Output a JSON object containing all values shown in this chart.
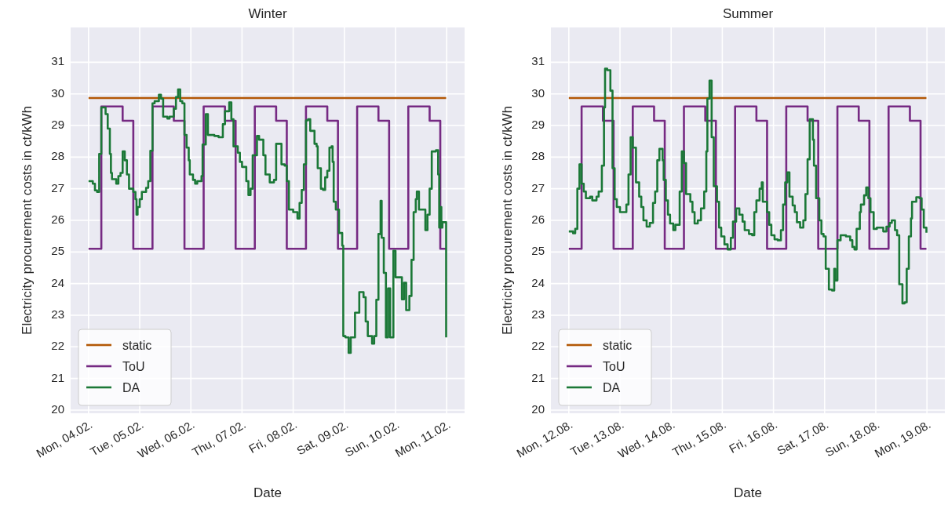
{
  "chart_data": [
    {
      "type": "step",
      "title": "Winter",
      "xlabel": "Date",
      "ylabel": "Electricity procurement costs in ct/kWh",
      "xlim": [
        "--02-03T15:36",
        "--02-11T08:24"
      ],
      "ylim": [
        19.9,
        32.1
      ],
      "xticks": [
        {
          "value": "--02-04",
          "label": "Mon, 04.02."
        },
        {
          "value": "--02-05",
          "label": "Tue, 05.02."
        },
        {
          "value": "--02-06",
          "label": "Wed, 06.02."
        },
        {
          "value": "--02-07",
          "label": "Thu, 07.02."
        },
        {
          "value": "--02-08",
          "label": "Fri, 08.02."
        },
        {
          "value": "--02-09",
          "label": "Sat, 09.02."
        },
        {
          "value": "--02-10",
          "label": "Sun, 10.02."
        },
        {
          "value": "--02-11",
          "label": "Mon, 11.02."
        }
      ],
      "yticks": [
        20,
        21,
        22,
        23,
        24,
        25,
        26,
        27,
        28,
        29,
        30,
        31
      ],
      "grid": true,
      "legend": "bottom left",
      "series": [
        {
          "name": "static",
          "color": "#b35806",
          "x": [
            "--02-04T00:00",
            "--02-10T23:45"
          ],
          "values": [
            29.87,
            29.87
          ]
        },
        {
          "name": "ToU",
          "color": "#762a83",
          "x": [
            "--02-04T00:00",
            "--02-04T06:00",
            "--02-04T16:00",
            "--02-04T21:00",
            "--02-05T06:00",
            "--02-05T16:00",
            "--02-05T21:00",
            "--02-06T06:00",
            "--02-06T16:00",
            "--02-06T21:00",
            "--02-07T06:00",
            "--02-07T16:00",
            "--02-07T21:00",
            "--02-08T06:00",
            "--02-08T16:00",
            "--02-08T21:00",
            "--02-09T06:00",
            "--02-09T16:00",
            "--02-09T21:00",
            "--02-10T06:00",
            "--02-10T16:00",
            "--02-10T21:00",
            "--02-10T23:45"
          ],
          "values": [
            25.1,
            29.6,
            29.15,
            25.1,
            29.6,
            29.15,
            25.1,
            29.6,
            29.15,
            25.1,
            29.6,
            29.15,
            25.1,
            29.6,
            29.15,
            25.1,
            29.6,
            29.15,
            25.1,
            29.6,
            29.15,
            25.1,
            25.1
          ]
        },
        {
          "name": "DA",
          "color": "#1b7837",
          "x": [
            "--02-04T00:00",
            "--02-04T02:00",
            "--02-04T03:00",
            "--02-04T04:00",
            "--02-04T05:00",
            "--02-04T06:00",
            "--02-04T08:00",
            "--02-04T09:00",
            "--02-04T10:00",
            "--02-04T10:30",
            "--02-04T11:00",
            "--02-04T13:00",
            "--02-04T14:00",
            "--02-04T15:00",
            "--02-04T16:00",
            "--02-04T17:00",
            "--02-04T18:00",
            "--02-04T19:00",
            "--02-04T21:00",
            "--02-04T22:00",
            "--02-04T22:30",
            "--02-04T23:00",
            "--02-05T00:00",
            "--02-05T01:00",
            "--02-05T03:00",
            "--02-05T04:00",
            "--02-05T05:00",
            "--02-05T06:00",
            "--02-05T07:00",
            "--02-05T09:00",
            "--02-05T10:00",
            "--02-05T11:00",
            "--02-05T13:00",
            "--02-05T14:00",
            "--02-05T16:00",
            "--02-05T17:00",
            "--02-05T18:00",
            "--02-05T19:00",
            "--02-05T20:00",
            "--02-05T21:00",
            "--02-05T22:00",
            "--02-05T23:00",
            "--02-05T23:30",
            "--02-06T01:00",
            "--02-06T02:00",
            "--02-06T03:00",
            "--02-06T05:00",
            "--02-06T05:30",
            "--02-06T07:00",
            "--02-06T08:00",
            "--02-06T11:00",
            "--02-06T13:00",
            "--02-06T15:00",
            "--02-06T16:00",
            "--02-06T18:00",
            "--02-06T19:00",
            "--02-06T20:00",
            "--02-06T22:00",
            "--02-06T23:00",
            "--02-07T00:00",
            "--02-07T02:00",
            "--02-07T03:00",
            "--02-07T04:00",
            "--02-07T05:00",
            "--02-07T07:00",
            "--02-07T08:00",
            "--02-07T10:00",
            "--02-07T11:00",
            "--02-07T13:00",
            "--02-07T15:00",
            "--02-07T16:00",
            "--02-07T18:30",
            "--02-07T20:00",
            "--02-07T21:00",
            "--02-07T22:00",
            "--02-08T00:00",
            "--02-08T02:00",
            "--02-08T03:00",
            "--02-08T04:00",
            "--02-08T05:00",
            "--02-08T06:00",
            "--02-08T07:00",
            "--02-08T08:00",
            "--02-08T10:00",
            "--02-08T11:00",
            "--02-08T11:30",
            "--02-08T13:00",
            "--02-08T14:00",
            "--02-08T15:00",
            "--02-08T16:00",
            "--02-08T17:00",
            "--02-08T18:00",
            "--02-08T18:30",
            "--02-08T19:00",
            "--02-08T20:00",
            "--02-08T21:30",
            "--02-08T23:00",
            "--02-08T23:30",
            "--02-09T00:30",
            "--02-09T02:00",
            "--02-09T03:00",
            "--02-09T05:00",
            "--02-09T07:00",
            "--02-09T09:00",
            "--02-09T10:00",
            "--02-09T11:00",
            "--02-09T13:00",
            "--02-09T14:00",
            "--02-09T15:00",
            "--02-09T16:00",
            "--02-09T17:00",
            "--02-09T17:30",
            "--02-09T18:30",
            "--02-09T19:30",
            "--02-09T20:30",
            "--02-09T21:30",
            "--02-09T23:00",
            "--02-10T00:00",
            "--02-10T02:00",
            "--02-10T03:00",
            "--02-10T04:00",
            "--02-10T05:00",
            "--02-10T06:30",
            "--02-10T07:30",
            "--02-10T08:30",
            "--02-10T09:30",
            "--02-10T10:00",
            "--02-10T11:00",
            "--02-10T14:00",
            "--02-10T15:00",
            "--02-10T16:00",
            "--02-10T17:00",
            "--02-10T19:00",
            "--02-10T20:00",
            "--02-10T20:30",
            "--02-10T21:00",
            "--02-10T21:30",
            "--02-10T22:00",
            "--02-10T23:45"
          ],
          "values": [
            27.24,
            27.16,
            26.95,
            26.9,
            28.1,
            29.57,
            29.36,
            28.9,
            28.1,
            27.5,
            27.3,
            27.16,
            27.4,
            27.5,
            28.18,
            27.9,
            27.45,
            27.0,
            26.9,
            26.67,
            26.18,
            26.42,
            26.67,
            26.9,
            27.03,
            27.24,
            28.2,
            29.7,
            29.77,
            29.97,
            29.85,
            29.28,
            29.22,
            29.28,
            29.53,
            29.9,
            30.14,
            29.77,
            29.7,
            28.7,
            28.3,
            27.9,
            27.45,
            27.28,
            27.16,
            27.24,
            27.4,
            28.4,
            29.36,
            28.7,
            28.67,
            28.63,
            29.04,
            29.45,
            29.73,
            29.2,
            28.34,
            28.14,
            27.85,
            27.69,
            27.24,
            26.8,
            27.0,
            28.06,
            28.67,
            28.55,
            28.06,
            27.45,
            27.2,
            27.28,
            28.42,
            27.77,
            27.73,
            27.24,
            26.34,
            26.26,
            26.06,
            26.55,
            26.96,
            27.77,
            29.16,
            29.2,
            28.83,
            28.42,
            28.34,
            27.65,
            27.0,
            26.96,
            27.36,
            27.57,
            28.3,
            28.34,
            27.85,
            26.59,
            26.34,
            25.6,
            25.2,
            22.34,
            22.3,
            21.81,
            22.3,
            23.08,
            23.73,
            23.57,
            22.8,
            22.34,
            22.1,
            22.34,
            23.49,
            25.57,
            26.62,
            25.45,
            24.34,
            22.3,
            23.85,
            22.3,
            25.04,
            24.2,
            24.2,
            23.5,
            24.03,
            23.16,
            23.61,
            24.75,
            26.26,
            26.67,
            26.91,
            26.34,
            25.69,
            26.18,
            27.0,
            28.18,
            28.22,
            27.45,
            25.77,
            26.42,
            25.77,
            25.94,
            22.3
          ]
        }
      ]
    },
    {
      "type": "step",
      "title": "Summer",
      "xlabel": "Date",
      "ylabel": "Electricity procurement costs in ct/kWh",
      "xlim": [
        "--08-11T15:36",
        "--08-19T08:24"
      ],
      "ylim": [
        19.9,
        32.1
      ],
      "xticks": [
        {
          "value": "--08-12",
          "label": "Mon, 12.08."
        },
        {
          "value": "--08-13",
          "label": "Tue, 13.08."
        },
        {
          "value": "--08-14",
          "label": "Wed, 14.08."
        },
        {
          "value": "--08-15",
          "label": "Thu, 15.08."
        },
        {
          "value": "--08-16",
          "label": "Fri, 16.08."
        },
        {
          "value": "--08-17",
          "label": "Sat, 17.08."
        },
        {
          "value": "--08-18",
          "label": "Sun, 18.08."
        },
        {
          "value": "--08-19",
          "label": "Mon, 19.08."
        }
      ],
      "yticks": [
        20,
        21,
        22,
        23,
        24,
        25,
        26,
        27,
        28,
        29,
        30,
        31
      ],
      "grid": true,
      "legend": "bottom left",
      "series": [
        {
          "name": "static",
          "color": "#b35806",
          "x": [
            "--08-12T00:00",
            "--08-18T23:45"
          ],
          "values": [
            29.87,
            29.87
          ]
        },
        {
          "name": "ToU",
          "color": "#762a83",
          "x": [
            "--08-12T00:00",
            "--08-12T06:00",
            "--08-12T16:00",
            "--08-12T21:00",
            "--08-13T06:00",
            "--08-13T16:00",
            "--08-13T21:00",
            "--08-14T06:00",
            "--08-14T16:00",
            "--08-14T21:00",
            "--08-15T06:00",
            "--08-15T16:00",
            "--08-15T21:00",
            "--08-16T06:00",
            "--08-16T16:00",
            "--08-16T21:00",
            "--08-17T06:00",
            "--08-17T16:00",
            "--08-17T21:00",
            "--08-18T06:00",
            "--08-18T16:00",
            "--08-18T21:00",
            "--08-18T23:45"
          ],
          "values": [
            25.1,
            29.6,
            29.15,
            25.1,
            29.6,
            29.15,
            25.1,
            29.6,
            29.15,
            25.1,
            29.6,
            29.15,
            25.1,
            29.6,
            29.15,
            25.1,
            29.6,
            29.15,
            25.1,
            29.6,
            29.15,
            25.1,
            25.1
          ]
        },
        {
          "name": "DA",
          "color": "#1b7837",
          "x": [
            "--08-12T00:00",
            "--08-12T02:00",
            "--08-12T03:00",
            "--08-12T04:00",
            "--08-12T05:00",
            "--08-12T06:00",
            "--08-12T07:00",
            "--08-12T08:00",
            "--08-12T10:00",
            "--08-12T11:00",
            "--08-12T13:00",
            "--08-12T14:00",
            "--08-12T15:30",
            "--08-12T16:30",
            "--08-12T17:00",
            "--08-12T18:00",
            "--08-12T19:30",
            "--08-12T20:30",
            "--08-12T21:30",
            "--08-12T22:30",
            "--08-13T00:00",
            "--08-13T02:00",
            "--08-13T03:00",
            "--08-13T04:00",
            "--08-13T05:00",
            "--08-13T06:00",
            "--08-13T07:30",
            "--08-13T09:00",
            "--08-13T10:00",
            "--08-13T11:00",
            "--08-13T12:30",
            "--08-13T14:00",
            "--08-13T15:30",
            "--08-13T16:30",
            "--08-13T17:30",
            "--08-13T18:30",
            "--08-13T20:00",
            "--08-13T20:30",
            "--08-13T21:30",
            "--08-13T22:30",
            "--08-13T23:30",
            "--08-14T01:00",
            "--08-14T02:00",
            "--08-14T04:00",
            "--08-14T05:00",
            "--08-14T06:00",
            "--08-14T07:00",
            "--08-14T09:00",
            "--08-14T10:00",
            "--08-14T11:00",
            "--08-14T12:30",
            "--08-14T14:00",
            "--08-14T15:30",
            "--08-14T16:30",
            "--08-14T17:00",
            "--08-14T18:00",
            "--08-14T19:00",
            "--08-14T20:00",
            "--08-14T21:30",
            "--08-14T22:30",
            "--08-14T23:30",
            "--08-15T01:00",
            "--08-15T02:30",
            "--08-15T04:00",
            "--08-15T05:00",
            "--08-15T06:30",
            "--08-15T08:00",
            "--08-15T09:30",
            "--08-15T10:30",
            "--08-15T12:30",
            "--08-15T14:00",
            "--08-15T15:00",
            "--08-15T16:00",
            "--08-15T17:30",
            "--08-15T18:30",
            "--08-15T19:00",
            "--08-15T21:00",
            "--08-15T22:00",
            "--08-15T23:00",
            "--08-16T00:30",
            "--08-16T02:00",
            "--08-16T03:30",
            "--08-16T04:30",
            "--08-16T05:30",
            "--08-16T06:30",
            "--08-16T07:30",
            "--08-16T09:00",
            "--08-16T10:00",
            "--08-16T11:00",
            "--08-16T12:30",
            "--08-16T14:00",
            "--08-16T15:00",
            "--08-16T16:00",
            "--08-16T17:00",
            "--08-16T18:30",
            "--08-16T19:00",
            "--08-16T20:00",
            "--08-16T21:30",
            "--08-16T22:30",
            "--08-16T23:30",
            "--08-17T00:30",
            "--08-17T02:00",
            "--08-17T03:30",
            "--08-17T04:30",
            "--08-17T05:00",
            "--08-17T06:00",
            "--08-17T07:30",
            "--08-17T10:00",
            "--08-17T12:00",
            "--08-17T13:00",
            "--08-17T14:00",
            "--08-17T15:00",
            "--08-17T16:30",
            "--08-17T17:00",
            "--08-17T18:30",
            "--08-17T19:30",
            "--08-17T20:30",
            "--08-17T21:30",
            "--08-17T23:00",
            "--08-18T00:30",
            "--08-18T02:00",
            "--08-18T03:30",
            "--08-18T05:00",
            "--08-18T06:30",
            "--08-18T07:30",
            "--08-18T09:00",
            "--08-18T10:00",
            "--08-18T11:00",
            "--08-18T12:30",
            "--08-18T13:30",
            "--08-18T14:30",
            "--08-18T15:30",
            "--08-18T16:30",
            "--08-18T17:00",
            "--08-18T19:00",
            "--08-18T20:30",
            "--08-18T21:30",
            "--08-18T22:30",
            "--08-18T23:45"
          ],
          "values": [
            25.65,
            25.59,
            25.73,
            27.0,
            27.77,
            27.16,
            26.91,
            26.7,
            26.75,
            26.63,
            26.75,
            26.91,
            27.73,
            29.57,
            30.8,
            30.75,
            30.1,
            27.65,
            26.67,
            26.42,
            26.26,
            26.26,
            26.5,
            27.45,
            28.63,
            28.3,
            27.2,
            26.75,
            26.42,
            26.0,
            25.8,
            25.92,
            26.55,
            26.91,
            27.9,
            28.26,
            27.9,
            27.28,
            26.63,
            26.18,
            25.9,
            25.69,
            25.86,
            26.91,
            28.18,
            27.81,
            26.83,
            26.59,
            26.26,
            25.9,
            26.0,
            26.38,
            26.91,
            28.18,
            29.85,
            30.42,
            28.63,
            27.08,
            26.59,
            25.77,
            25.49,
            25.24,
            25.08,
            25.45,
            25.96,
            26.38,
            26.18,
            25.96,
            25.69,
            25.57,
            25.53,
            26.26,
            26.63,
            27.0,
            27.2,
            26.59,
            26.26,
            25.86,
            25.53,
            25.4,
            25.37,
            25.69,
            26.5,
            27.2,
            27.52,
            26.75,
            26.47,
            26.26,
            25.94,
            25.77,
            26.0,
            26.83,
            27.93,
            29.2,
            28.55,
            27.73,
            26.7,
            26.0,
            25.57,
            25.49,
            24.47,
            23.81,
            23.78,
            24.47,
            24.1,
            25.37,
            25.53,
            25.49,
            25.37,
            25.16,
            25.08,
            25.73,
            26.26,
            26.5,
            26.79,
            27.04,
            26.7,
            26.26,
            25.73,
            25.77,
            25.77,
            25.65,
            25.8,
            25.92,
            26.0,
            25.69,
            25.53,
            23.98,
            23.37,
            23.41,
            24.47,
            25.49,
            26.06,
            26.59,
            26.73,
            26.7,
            26.34,
            25.77,
            25.61
          ]
        }
      ]
    }
  ]
}
